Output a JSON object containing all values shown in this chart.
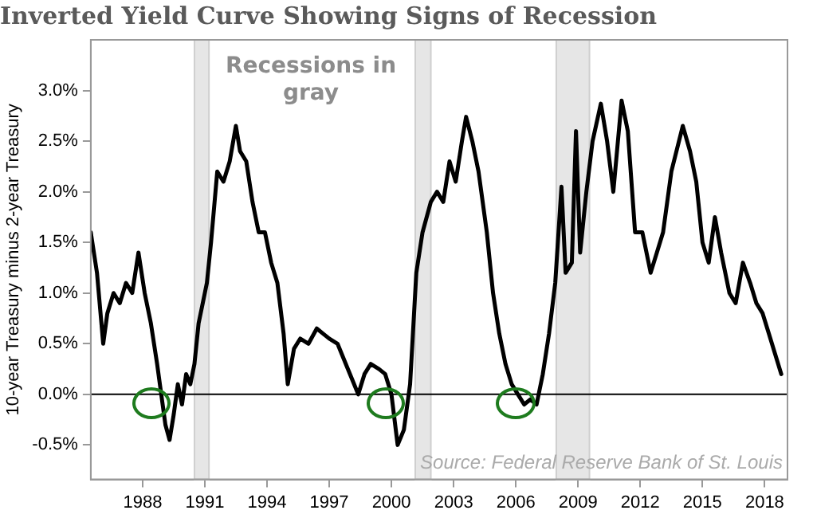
{
  "chart_data": {
    "type": "line",
    "title": "Inverted Yield Curve Showing Signs of Recession",
    "ylabel": "10-year Treasury minus 2-year Treasury",
    "annotations": [
      "Recessions in gray",
      "Source: Federal Reserve Bank of St. Louis"
    ],
    "series": [
      {
        "color": "#000000",
        "x": [
          1985.5,
          1985.8,
          1986.1,
          1986.3,
          1986.6,
          1986.9,
          1987.2,
          1987.5,
          1987.8,
          1988.1,
          1988.4,
          1988.7,
          1988.9,
          1989.1,
          1989.3,
          1989.5,
          1989.7,
          1989.9,
          1990.1,
          1990.3,
          1990.5,
          1990.7,
          1990.9,
          1991.1,
          1991.3,
          1991.6,
          1991.9,
          1992.2,
          1992.5,
          1992.7,
          1993.0,
          1993.3,
          1993.6,
          1993.9,
          1994.2,
          1994.5,
          1994.8,
          1995.0,
          1995.3,
          1995.6,
          1996.0,
          1996.4,
          1996.7,
          1997.0,
          1997.4,
          1997.8,
          1998.1,
          1998.4,
          1998.7,
          1999.0,
          1999.4,
          1999.7,
          2000.0,
          2000.3,
          2000.6,
          2000.9,
          2001.2,
          2001.5,
          2001.9,
          2002.2,
          2002.5,
          2002.8,
          2003.1,
          2003.4,
          2003.6,
          2003.9,
          2004.2,
          2004.6,
          2004.9,
          2005.2,
          2005.5,
          2005.8,
          2006.1,
          2006.4,
          2006.7,
          2007.0,
          2007.3,
          2007.6,
          2007.9,
          2008.2,
          2008.4,
          2008.7,
          2008.9,
          2009.1,
          2009.4,
          2009.7,
          2010.1,
          2010.4,
          2010.7,
          2011.1,
          2011.4,
          2011.75,
          2012.1,
          2012.5,
          2012.8,
          2013.1,
          2013.5,
          2014.05,
          2014.4,
          2014.7,
          2015.0,
          2015.3,
          2015.6,
          2015.9,
          2016.3,
          2016.6,
          2016.95,
          2017.3,
          2017.6,
          2017.9,
          2018.2,
          2018.5,
          2018.8
        ],
        "values": [
          1.6,
          1.2,
          0.5,
          0.8,
          1.0,
          0.9,
          1.1,
          1.0,
          1.4,
          1.0,
          0.7,
          0.3,
          0.0,
          -0.3,
          -0.45,
          -0.2,
          0.1,
          -0.1,
          0.2,
          0.1,
          0.3,
          0.7,
          0.9,
          1.1,
          1.5,
          2.2,
          2.1,
          2.3,
          2.65,
          2.4,
          2.3,
          1.9,
          1.6,
          1.6,
          1.3,
          1.1,
          0.6,
          0.1,
          0.45,
          0.55,
          0.5,
          0.65,
          0.6,
          0.55,
          0.5,
          0.3,
          0.15,
          0.0,
          0.2,
          0.3,
          0.25,
          0.2,
          0.0,
          -0.5,
          -0.35,
          0.1,
          1.2,
          1.6,
          1.9,
          2.0,
          1.9,
          2.3,
          2.1,
          2.5,
          2.74,
          2.5,
          2.2,
          1.6,
          1.0,
          0.6,
          0.3,
          0.1,
          0.0,
          -0.1,
          -0.05,
          -0.1,
          0.2,
          0.6,
          1.1,
          2.05,
          1.2,
          1.3,
          2.6,
          1.4,
          2.0,
          2.5,
          2.87,
          2.5,
          2.0,
          2.9,
          2.6,
          1.6,
          1.6,
          1.2,
          1.4,
          1.6,
          2.2,
          2.65,
          2.4,
          2.1,
          1.5,
          1.3,
          1.75,
          1.4,
          1.0,
          0.9,
          1.3,
          1.1,
          0.9,
          0.8,
          0.6,
          0.4,
          0.2
        ]
      }
    ],
    "xlim": [
      1985.5,
      2019.1
    ],
    "xticks": [
      1988,
      1991,
      1994,
      1997,
      2000,
      2003,
      2006,
      2009,
      2012,
      2015,
      2018
    ],
    "ylim": [
      -0.84,
      3.5
    ],
    "yticks": [
      {
        "value": -0.5,
        "label": "-0.5%"
      },
      {
        "value": 0,
        "label": "0.0%"
      },
      {
        "value": 0.5,
        "label": "0.5%"
      },
      {
        "value": 1,
        "label": "1.0%"
      },
      {
        "value": 1.5,
        "label": "1.5%"
      },
      {
        "value": 2,
        "label": "2.0%"
      },
      {
        "value": 2.5,
        "label": "2.5%"
      },
      {
        "value": 3,
        "label": "3.0%"
      }
    ],
    "ref_lines": [
      {
        "axis": "y",
        "value": 0,
        "color": "#000000"
      }
    ],
    "bands": [
      {
        "axis": "x",
        "from": 1990.5,
        "to": 1991.2,
        "color": "#e6e6e6"
      },
      {
        "axis": "x",
        "from": 2001.15,
        "to": 2001.9,
        "color": "#e6e6e6"
      },
      {
        "axis": "x",
        "from": 2007.95,
        "to": 2009.55,
        "color": "#e6e6e6"
      }
    ],
    "grid": false,
    "legend": false
  }
}
